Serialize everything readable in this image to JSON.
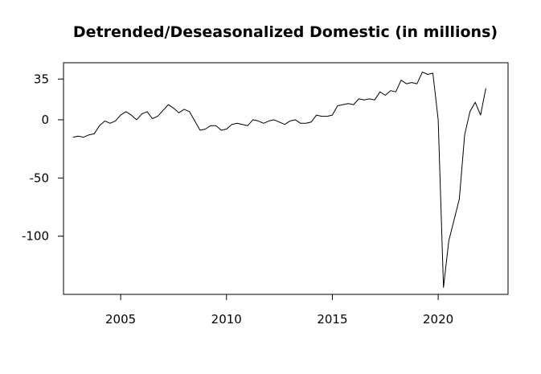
{
  "chart_data": {
    "type": "line",
    "title": "Detrended/Deseasonalized Domestic (in millions)",
    "xlabel": "",
    "ylabel": "",
    "xlim": [
      2002.3,
      2023.3
    ],
    "ylim": [
      -150,
      49
    ],
    "x_ticks": [
      2005,
      2010,
      2015,
      2020
    ],
    "y_ticks": [
      35,
      0,
      -50,
      -100
    ],
    "grid": false,
    "legend": "none",
    "line_color": "#000000",
    "series": [
      {
        "x": [
          2002.75,
          2003.0,
          2003.25,
          2003.5,
          2003.75,
          2004.0,
          2004.25,
          2004.5,
          2004.75,
          2005.0,
          2005.25,
          2005.5,
          2005.75,
          2006.0,
          2006.25,
          2006.5,
          2006.75,
          2007.0,
          2007.25,
          2007.5,
          2007.75,
          2008.0,
          2008.25,
          2008.5,
          2008.75,
          2009.0,
          2009.25,
          2009.5,
          2009.75,
          2010.0,
          2010.25,
          2010.5,
          2010.75,
          2011.0,
          2011.25,
          2011.5,
          2011.75,
          2012.0,
          2012.25,
          2012.5,
          2012.75,
          2013.0,
          2013.25,
          2013.5,
          2013.75,
          2014.0,
          2014.25,
          2014.5,
          2014.75,
          2015.0,
          2015.25,
          2015.5,
          2015.75,
          2016.0,
          2016.25,
          2016.5,
          2016.75,
          2017.0,
          2017.25,
          2017.5,
          2017.75,
          2018.0,
          2018.25,
          2018.5,
          2018.75,
          2019.0,
          2019.25,
          2019.5,
          2019.75,
          2020.0,
          2020.25,
          2020.5,
          2020.75,
          2021.0,
          2021.25,
          2021.5,
          2021.75,
          2022.0,
          2022.25
        ],
        "values": [
          -15,
          -14,
          -15,
          -13,
          -12,
          -5,
          -1,
          -3,
          -1,
          4,
          7,
          4,
          0,
          5,
          7,
          1,
          3,
          8,
          13,
          10,
          6,
          9,
          7,
          -1,
          -9,
          -8,
          -5,
          -5,
          -9,
          -8,
          -4,
          -3,
          -4,
          -5,
          0,
          -1,
          -3,
          -1,
          0,
          -2,
          -4,
          -1,
          0,
          -3,
          -3,
          -2,
          4,
          3,
          3,
          4,
          12,
          13,
          14,
          13,
          18,
          17,
          18,
          17,
          24,
          21,
          25,
          24,
          34,
          31,
          32,
          31,
          41,
          39,
          40,
          0,
          -144,
          -104,
          -86,
          -68,
          -13,
          7,
          15,
          4,
          27
        ]
      }
    ]
  }
}
